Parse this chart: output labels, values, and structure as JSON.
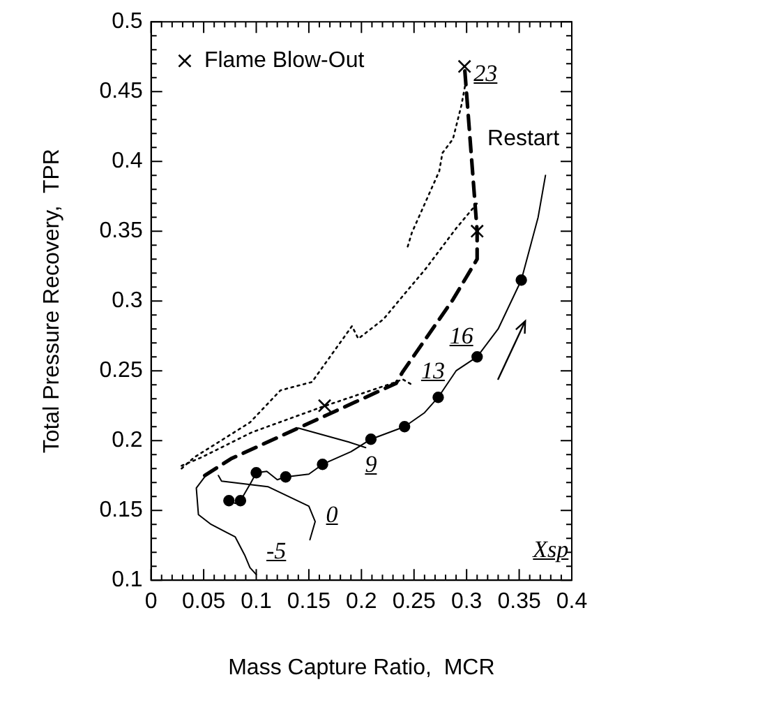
{
  "chart_data": {
    "type": "line",
    "xlabel": "Mass Capture Ratio,  MCR",
    "ylabel": "Total Pressure Recovery,  TPR",
    "legend": "top left",
    "grid": false,
    "xlim": [
      0,
      0.4
    ],
    "ylim": [
      0.1,
      0.5
    ],
    "xticks": [
      0,
      {
        "value": 0.01,
        "label": null
      },
      {
        "value": 0.02,
        "label": null
      },
      {
        "value": 0.03,
        "label": null
      },
      {
        "value": 0.04,
        "label": null
      },
      0.05,
      {
        "value": 0.06,
        "label": null
      },
      {
        "value": 0.07,
        "label": null
      },
      {
        "value": 0.08,
        "label": null
      },
      {
        "value": 0.09,
        "label": null
      },
      0.1,
      {
        "value": 0.11,
        "label": null
      },
      {
        "value": 0.12,
        "label": null
      },
      {
        "value": 0.13,
        "label": null
      },
      {
        "value": 0.14,
        "label": null
      },
      0.15,
      {
        "value": 0.16,
        "label": null
      },
      {
        "value": 0.17,
        "label": null
      },
      {
        "value": 0.18,
        "label": null
      },
      {
        "value": 0.19,
        "label": null
      },
      0.2,
      {
        "value": 0.21,
        "label": null
      },
      {
        "value": 0.22,
        "label": null
      },
      {
        "value": 0.23,
        "label": null
      },
      {
        "value": 0.24,
        "label": null
      },
      0.25,
      {
        "value": 0.26,
        "label": null
      },
      {
        "value": 0.27,
        "label": null
      },
      {
        "value": 0.28,
        "label": null
      },
      {
        "value": 0.29,
        "label": null
      },
      0.3,
      {
        "value": 0.31,
        "label": null
      },
      {
        "value": 0.32,
        "label": null
      },
      {
        "value": 0.33,
        "label": null
      },
      {
        "value": 0.34,
        "label": null
      },
      0.35,
      {
        "value": 0.36,
        "label": null
      },
      {
        "value": 0.37,
        "label": null
      },
      {
        "value": 0.38,
        "label": null
      },
      {
        "value": 0.39,
        "label": null
      },
      0.4
    ],
    "yticks": [
      0.1,
      {
        "value": 0.11,
        "label": null
      },
      {
        "value": 0.12,
        "label": null
      },
      {
        "value": 0.13,
        "label": null
      },
      {
        "value": 0.14,
        "label": null
      },
      0.15,
      {
        "value": 0.16,
        "label": null
      },
      {
        "value": 0.17,
        "label": null
      },
      {
        "value": 0.18,
        "label": null
      },
      {
        "value": 0.19,
        "label": null
      },
      0.2,
      {
        "value": 0.21,
        "label": null
      },
      {
        "value": 0.22,
        "label": null
      },
      {
        "value": 0.23,
        "label": null
      },
      {
        "value": 0.24,
        "label": null
      },
      0.25,
      {
        "value": 0.26,
        "label": null
      },
      {
        "value": 0.27,
        "label": null
      },
      {
        "value": 0.28,
        "label": null
      },
      {
        "value": 0.29,
        "label": null
      },
      0.3,
      {
        "value": 0.31,
        "label": null
      },
      {
        "value": 0.32,
        "label": null
      },
      {
        "value": 0.33,
        "label": null
      },
      {
        "value": 0.34,
        "label": null
      },
      0.35,
      {
        "value": 0.36,
        "label": null
      },
      {
        "value": 0.37,
        "label": null
      },
      {
        "value": 0.38,
        "label": null
      },
      {
        "value": 0.39,
        "label": null
      },
      0.4,
      {
        "value": 0.41,
        "label": null
      },
      {
        "value": 0.42,
        "label": null
      },
      {
        "value": 0.43,
        "label": null
      },
      {
        "value": 0.44,
        "label": null
      },
      0.45,
      {
        "value": 0.46,
        "label": null
      },
      {
        "value": 0.47,
        "label": null
      },
      {
        "value": 0.48,
        "label": null
      },
      {
        "value": 0.49,
        "label": null
      },
      0.5
    ],
    "series": [
      {
        "line_style": "solid",
        "marker": "none",
        "color": "#000000",
        "x": [
          0.074,
          0.08,
          0.085,
          0.095,
          0.1,
          0.11,
          0.12,
          0.128,
          0.15,
          0.163,
          0.19,
          0.209,
          0.241,
          0.26,
          0.273,
          0.29,
          0.31,
          0.33,
          0.352,
          0.368,
          0.375
        ],
        "values": [
          0.157,
          0.155,
          0.157,
          0.17,
          0.177,
          0.178,
          0.172,
          0.174,
          0.176,
          0.183,
          0.192,
          0.201,
          0.21,
          0.22,
          0.231,
          0.25,
          0.26,
          0.28,
          0.315,
          0.36,
          0.39
        ]
      },
      {
        "type": "scatter",
        "marker": "circle",
        "color": "#000000",
        "x": [
          0.074,
          0.085,
          0.1,
          0.128,
          0.163,
          0.209,
          0.241,
          0.273,
          0.31,
          0.352
        ],
        "values": [
          0.157,
          0.157,
          0.177,
          0.174,
          0.183,
          0.201,
          0.21,
          0.231,
          0.26,
          0.315
        ]
      },
      {
        "line_style": "solid",
        "marker": "none",
        "color": "#000000",
        "x": [
          0.052,
          0.043,
          0.045,
          0.057,
          0.08,
          0.089,
          0.094,
          0.1
        ],
        "values": [
          0.175,
          0.166,
          0.147,
          0.14,
          0.131,
          0.118,
          0.109,
          0.104
        ]
      },
      {
        "line_style": "solid",
        "marker": "none",
        "color": "#000000",
        "x": [
          0.064,
          0.067,
          0.111,
          0.15,
          0.156,
          0.151
        ],
        "values": [
          0.175,
          0.171,
          0.167,
          0.153,
          0.142,
          0.129
        ]
      },
      {
        "line_style": "solid",
        "marker": "none",
        "color": "#000000",
        "x": [
          0.14,
          0.188,
          0.204
        ],
        "values": [
          0.209,
          0.199,
          0.195
        ]
      },
      {
        "line_style": "dotted",
        "marker": "none",
        "color": "#000000",
        "x": [
          0.029,
          0.041,
          0.094,
          0.123,
          0.153,
          0.191,
          0.197,
          0.221,
          0.242,
          0.261,
          0.29,
          0.31
        ],
        "values": [
          0.18,
          0.188,
          0.213,
          0.236,
          0.242,
          0.282,
          0.273,
          0.287,
          0.306,
          0.323,
          0.352,
          0.37
        ]
      },
      {
        "line_style": "dotted",
        "marker": "none",
        "color": "#000000",
        "x": [
          0.029,
          0.048,
          0.096,
          0.162,
          0.233,
          0.239,
          0.248
        ],
        "values": [
          0.182,
          0.188,
          0.206,
          0.224,
          0.242,
          0.244,
          0.24
        ]
      },
      {
        "line_style": "dotted",
        "marker": "none",
        "color": "#000000",
        "x": [
          0.244,
          0.248,
          0.274,
          0.277,
          0.287,
          0.295,
          0.3
        ],
        "values": [
          0.339,
          0.349,
          0.393,
          0.406,
          0.416,
          0.44,
          0.46
        ]
      },
      {
        "line_style": "dashed",
        "marker": "none",
        "color": "#000000",
        "x": [
          0.051,
          0.076,
          0.233,
          0.239,
          0.287,
          0.31,
          0.31,
          0.298
        ],
        "values": [
          0.175,
          0.187,
          0.241,
          0.249,
          0.301,
          0.33,
          0.35,
          0.468
        ]
      },
      {
        "type": "scatter",
        "name": "Flame Blow-Out",
        "marker": "cross",
        "color": "#000000",
        "x": [
          0.165,
          0.31,
          0.298
        ],
        "values": [
          0.225,
          0.35,
          0.468
        ]
      }
    ],
    "annotations": [
      "-5",
      "0",
      "9",
      "13",
      "16",
      "23",
      "Restart",
      "Xsp"
    ]
  }
}
